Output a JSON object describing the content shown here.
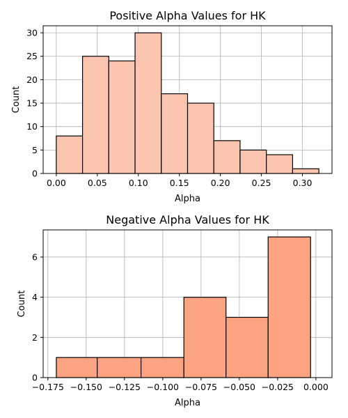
{
  "chart_data": [
    {
      "type": "bar",
      "title": "Positive Alpha Values for HK",
      "xlabel": "Alpha",
      "ylabel": "Count",
      "xlim": [
        -0.016,
        0.336
      ],
      "ylim": [
        0,
        31.5
      ],
      "xticks": [
        0.0,
        0.05,
        0.1,
        0.15,
        0.2,
        0.25,
        0.3
      ],
      "xtick_labels": [
        "0.00",
        "0.05",
        "0.10",
        "0.15",
        "0.20",
        "0.25",
        "0.30"
      ],
      "yticks": [
        0,
        5,
        10,
        15,
        20,
        25,
        30
      ],
      "ytick_labels": [
        "0",
        "5",
        "10",
        "15",
        "20",
        "25",
        "30"
      ],
      "grid": true,
      "color": "#fcc5b0",
      "bins": [
        {
          "x0": 0.0,
          "x1": 0.032,
          "value": 8
        },
        {
          "x0": 0.032,
          "x1": 0.064,
          "value": 25
        },
        {
          "x0": 0.064,
          "x1": 0.096,
          "value": 24
        },
        {
          "x0": 0.096,
          "x1": 0.128,
          "value": 30
        },
        {
          "x0": 0.128,
          "x1": 0.16,
          "value": 17
        },
        {
          "x0": 0.16,
          "x1": 0.192,
          "value": 15
        },
        {
          "x0": 0.192,
          "x1": 0.224,
          "value": 7
        },
        {
          "x0": 0.224,
          "x1": 0.256,
          "value": 5
        },
        {
          "x0": 0.256,
          "x1": 0.288,
          "value": 4
        },
        {
          "x0": 0.288,
          "x1": 0.32,
          "value": 1
        }
      ]
    },
    {
      "type": "bar",
      "title": "Negative Alpha Values for HK",
      "xlabel": "Alpha",
      "ylabel": "Count",
      "xlim": [
        -0.1781,
        0.0105
      ],
      "ylim": [
        0,
        7.35
      ],
      "xticks": [
        -0.175,
        -0.15,
        -0.125,
        -0.1,
        -0.075,
        -0.05,
        -0.025,
        0.0
      ],
      "xtick_labels": [
        "−0.175",
        "−0.150",
        "−0.125",
        "−0.100",
        "−0.075",
        "−0.050",
        "−0.025",
        "0.000"
      ],
      "yticks": [
        0,
        2,
        4,
        6
      ],
      "ytick_labels": [
        "0",
        "2",
        "4",
        "6"
      ],
      "grid": true,
      "color": "#fca482",
      "bins": [
        {
          "x0": -0.1695,
          "x1": -0.1428,
          "value": 1
        },
        {
          "x0": -0.1428,
          "x1": -0.1142,
          "value": 1
        },
        {
          "x0": -0.1142,
          "x1": -0.0862,
          "value": 1
        },
        {
          "x0": -0.0862,
          "x1": -0.0587,
          "value": 4
        },
        {
          "x0": -0.0587,
          "x1": -0.0312,
          "value": 3
        },
        {
          "x0": -0.0312,
          "x1": -0.0035,
          "value": 7
        }
      ]
    }
  ]
}
